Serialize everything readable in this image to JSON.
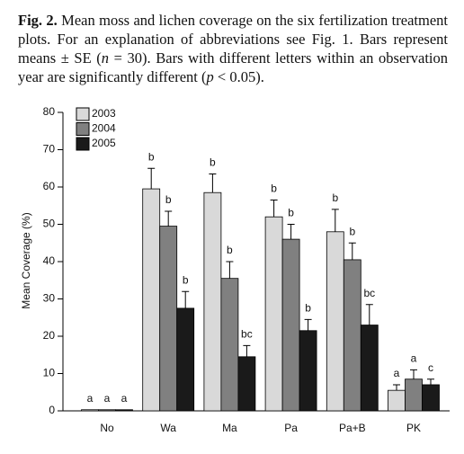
{
  "caption": {
    "label": "Fig. 2.",
    "runs": [
      {
        "text": " Mean moss and lichen coverage on the six fertilization treatment plots. For an explanation of abbreviations see Fig. 1. Bars represent means ± SE ("
      },
      {
        "text": "n",
        "italic": true
      },
      {
        "text": " = 30). Bars with different letters within an observation year are significantly different ("
      },
      {
        "text": "p",
        "italic": true
      },
      {
        "text": " < 0.05)."
      }
    ]
  },
  "chart_data": {
    "type": "bar",
    "ylabel": "Mean Coverage (%)",
    "categories": [
      "No",
      "Wa",
      "Ma",
      "Pa",
      "Pa+B",
      "PK"
    ],
    "ylim": [
      0,
      80
    ],
    "yticks": [
      0,
      10,
      20,
      30,
      40,
      50,
      60,
      70,
      80
    ],
    "legend": "top-left",
    "series": [
      {
        "name": "2003",
        "color": "#d9d9d9",
        "values": [
          0.3,
          59.5,
          58.5,
          52,
          48,
          5.5
        ],
        "errors": [
          null,
          5.5,
          5,
          4.5,
          6,
          1.5
        ],
        "letters": [
          "a",
          "b",
          "b",
          "b",
          "b",
          "a"
        ]
      },
      {
        "name": "2004",
        "color": "#808080",
        "values": [
          0.3,
          49.5,
          35.5,
          46,
          40.5,
          8.5
        ],
        "errors": [
          null,
          4,
          4.5,
          4,
          4.5,
          2.5
        ],
        "letters": [
          "a",
          "b",
          "b",
          "b",
          "b",
          "a"
        ]
      },
      {
        "name": "2005",
        "color": "#1a1a1a",
        "values": [
          0.3,
          27.5,
          14.5,
          21.5,
          23,
          7
        ],
        "errors": [
          null,
          4.5,
          3,
          3,
          5.5,
          1.5
        ],
        "letters": [
          "a",
          "b",
          "bc",
          "b",
          "bc",
          "c"
        ]
      }
    ]
  }
}
